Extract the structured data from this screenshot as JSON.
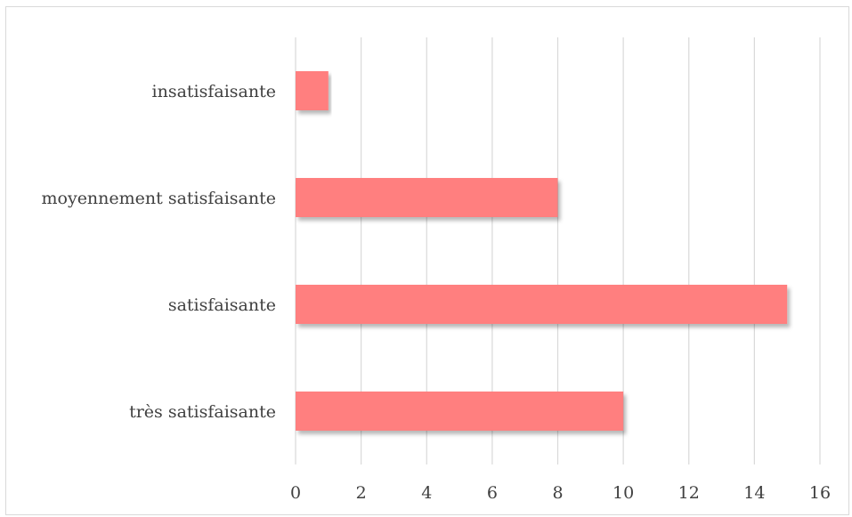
{
  "chart_data": {
    "type": "bar",
    "orientation": "horizontal",
    "categories": [
      "très satisfaisante",
      "satisfaisante",
      "moyennement satisfaisante",
      "insatisfaisante"
    ],
    "values": [
      10,
      15,
      8,
      1
    ],
    "xlim": [
      0,
      16
    ],
    "x_ticks": [
      "0",
      "2",
      "4",
      "6",
      "8",
      "10",
      "12",
      "14",
      "16"
    ],
    "grid": "vertical",
    "bar_color": "#ff7f7f",
    "grid_color": "#d9d9d9"
  }
}
